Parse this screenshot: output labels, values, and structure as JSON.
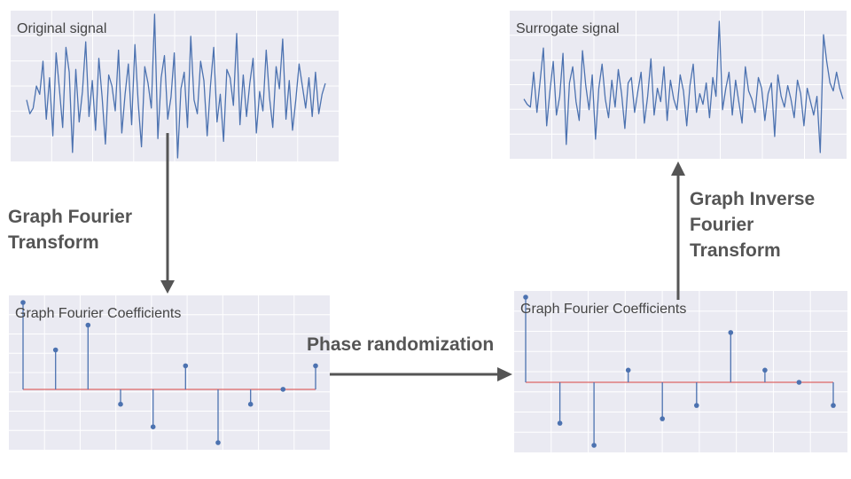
{
  "panels": {
    "original": {
      "title": "Original signal"
    },
    "surrogate": {
      "title": "Surrogate signal"
    },
    "coef_left": {
      "title": "Graph Fourier Coefficients"
    },
    "coef_right": {
      "title": "Graph Fourier Coefficients"
    }
  },
  "labels": {
    "gft_line1": "Graph Fourier",
    "gft_line2": "Transform",
    "phase": "Phase randomization",
    "igft_line1": "Graph Inverse",
    "igft_line2": "Fourier",
    "igft_line3": "Transform"
  },
  "colors": {
    "panel_bg": "#eaeaf2",
    "signal_line": "#4c72b0",
    "stem": "#4c72b0",
    "baseline": "#dd6666",
    "arrow": "#555555",
    "label": "#555555"
  },
  "chart_data": [
    {
      "type": "line",
      "y": [
        0.1,
        -0.4,
        -0.2,
        0.6,
        0.3,
        1.5,
        -0.6,
        0.9,
        -1.2,
        1.8,
        0.5,
        -0.9,
        2.0,
        1.1,
        -1.8,
        1.2,
        -0.7,
        0.4,
        2.2,
        -0.5,
        0.8,
        -1.0,
        1.6,
        0.2,
        -1.5,
        1.0,
        0.6,
        -0.3,
        1.9,
        -1.1,
        0.3,
        1.4,
        -0.8,
        2.1,
        0.0,
        -1.6,
        1.3,
        0.7,
        -0.2,
        3.2,
        -1.3,
        0.9,
        1.7,
        -0.6,
        0.2,
        1.8,
        -2.0,
        0.5,
        1.1,
        -0.9,
        2.4,
        0.1,
        -0.4,
        1.5,
        0.8,
        -1.2,
        0.6,
        2.0,
        -0.7,
        0.3,
        -1.4,
        1.2,
        0.9,
        -0.1,
        2.5,
        -0.8,
        1.0,
        -0.5,
        0.7,
        1.6,
        -1.1,
        0.4,
        -0.3,
        1.9,
        0.2,
        -0.9,
        1.3,
        0.5,
        2.3,
        -0.6,
        0.8,
        -1.0,
        0.1,
        1.4,
        0.6,
        -0.2,
        0.9,
        -0.5,
        1.1,
        -0.4,
        0.3,
        0.7
      ]
    },
    {
      "type": "line",
      "y": [
        0.2,
        0.0,
        -0.1,
        1.2,
        -0.3,
        0.9,
        2.1,
        -0.8,
        0.5,
        1.6,
        -0.4,
        0.3,
        1.9,
        -1.5,
        0.8,
        1.4,
        0.1,
        -0.6,
        2.0,
        0.7,
        -0.2,
        1.1,
        -1.3,
        0.6,
        1.5,
        0.2,
        -0.5,
        0.9,
        -0.1,
        1.3,
        0.4,
        -0.9,
        0.8,
        1.0,
        -0.3,
        0.5,
        1.2,
        -0.7,
        0.3,
        1.7,
        -0.4,
        0.6,
        0.1,
        1.4,
        -0.6,
        0.9,
        0.2,
        -0.2,
        1.1,
        0.5,
        -0.8,
        0.7,
        1.5,
        -0.3,
        0.4,
        0.0,
        0.8,
        -0.5,
        1.0,
        0.3,
        3.1,
        -0.2,
        0.6,
        1.2,
        -0.4,
        0.9,
        0.1,
        -0.7,
        1.4,
        0.5,
        0.2,
        -0.3,
        1.0,
        0.6,
        -0.6,
        0.4,
        0.8,
        -1.2,
        1.1,
        0.3,
        -0.1,
        0.7,
        0.2,
        -0.5,
        0.9,
        0.4,
        -0.8,
        0.6,
        0.1,
        -0.4,
        0.3,
        -1.8,
        2.6,
        1.6,
        0.8,
        0.5,
        1.2,
        0.6,
        0.2
      ]
    },
    {
      "type": "stem",
      "y": [
        1.9,
        0.85,
        1.4,
        -0.35,
        -0.85,
        0.5,
        -1.2,
        -0.35,
        -0.02,
        0.5
      ]
    },
    {
      "type": "stem",
      "y": [
        1.95,
        -0.9,
        -1.4,
        0.3,
        -0.8,
        -0.5,
        1.15,
        0.3,
        0.0,
        -0.5
      ]
    }
  ]
}
